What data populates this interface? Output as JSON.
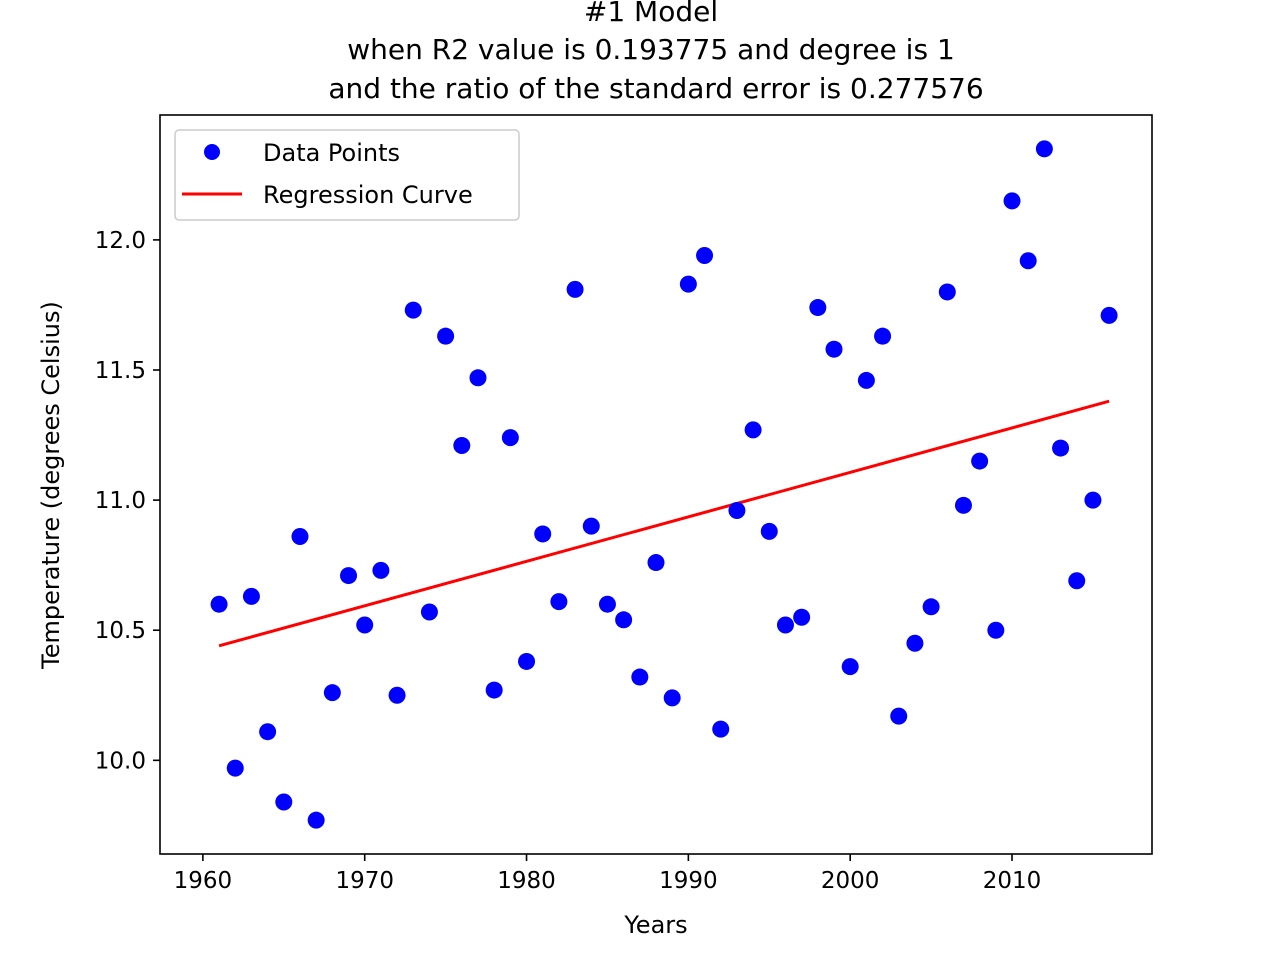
{
  "chart_data": {
    "type": "scatter",
    "title_lines": [
      "#1 Model",
      "when R2 value is 0.193775 and degree is 1",
      "and the ratio of the standard error is 0.277576"
    ],
    "xlabel": "Years",
    "ylabel": "Temperature (degrees Celsius)",
    "xlim": [
      1957.35,
      2018.65
    ],
    "ylim": [
      9.64,
      12.48
    ],
    "xticks": [
      1960,
      1970,
      1980,
      1990,
      2000,
      2010
    ],
    "xtick_labels": [
      "1960",
      "1970",
      "1980",
      "1990",
      "2000",
      "2010"
    ],
    "yticks": [
      10.0,
      10.5,
      11.0,
      11.5,
      12.0
    ],
    "ytick_labels": [
      "10.0",
      "10.5",
      "11.0",
      "11.5",
      "12.0"
    ],
    "grid": false,
    "legend_position": "top-left",
    "series": [
      {
        "name": "Data Points",
        "kind": "scatter",
        "color": "#0000ff",
        "x": [
          1961,
          1962,
          1963,
          1964,
          1965,
          1966,
          1967,
          1968,
          1969,
          1970,
          1971,
          1972,
          1973,
          1974,
          1975,
          1976,
          1977,
          1978,
          1979,
          1980,
          1981,
          1982,
          1983,
          1984,
          1985,
          1986,
          1987,
          1988,
          1989,
          1990,
          1991,
          1992,
          1993,
          1994,
          1995,
          1996,
          1997,
          1998,
          1999,
          2000,
          2001,
          2002,
          2003,
          2004,
          2005,
          2006,
          2007,
          2008,
          2009,
          2010,
          2011,
          2012,
          2013,
          2014,
          2015,
          2016
        ],
        "y": [
          10.6,
          9.97,
          10.63,
          10.11,
          9.84,
          10.86,
          9.77,
          10.26,
          10.71,
          10.52,
          10.73,
          10.25,
          11.73,
          10.57,
          11.63,
          11.21,
          11.47,
          10.27,
          11.24,
          10.38,
          10.87,
          10.61,
          11.81,
          10.9,
          10.6,
          10.54,
          10.32,
          10.76,
          10.24,
          11.83,
          11.94,
          10.12,
          10.96,
          11.27,
          10.88,
          10.52,
          10.55,
          11.74,
          11.58,
          10.36,
          11.46,
          11.63,
          10.17,
          10.45,
          10.59,
          11.8,
          10.98,
          11.15,
          10.5,
          12.15,
          11.92,
          12.35,
          11.2,
          10.69,
          11.0,
          11.71
        ]
      },
      {
        "name": "Regression Curve",
        "kind": "line",
        "color": "#ff0000",
        "x": [
          1961,
          2016
        ],
        "y": [
          10.44,
          11.38
        ]
      }
    ]
  }
}
